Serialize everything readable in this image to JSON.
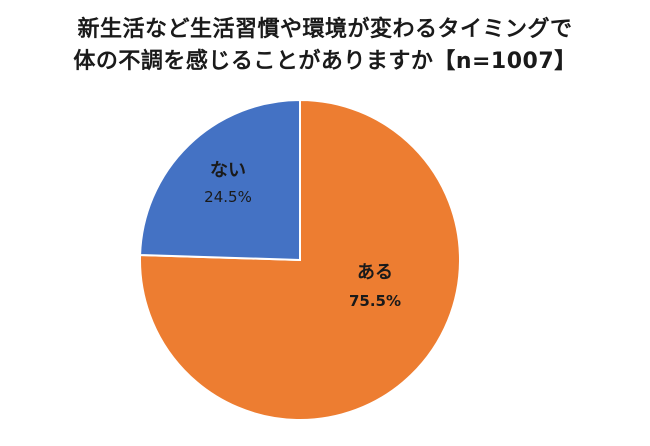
{
  "chart_data": {
    "type": "pie",
    "title_line1": "新生活など生活習慣や環境が変わるタイミングで",
    "title_line2": "体の不調を感じることがありますか【n=1007】",
    "slices": [
      {
        "label": "ある",
        "value": 75.5,
        "value_label": "75.5%",
        "color": "#ED7D31"
      },
      {
        "label": "ない",
        "value": 24.5,
        "value_label": "24.5%",
        "color": "#4472C4"
      }
    ]
  }
}
